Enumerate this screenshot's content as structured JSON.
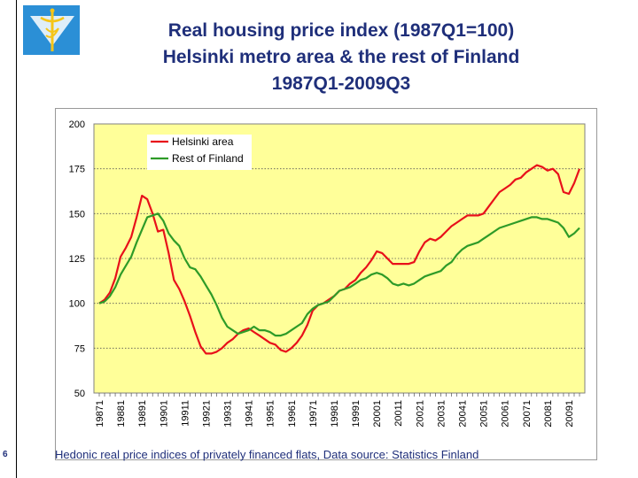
{
  "header": {
    "title_lines": [
      "Real housing price index (1987Q1=100)",
      "Helsinki metro area & the rest of Finland",
      "1987Q1-2009Q3"
    ]
  },
  "footer": {
    "caption": "Hedonic real price indices of privately financed flats, Data source: Statistics Finland",
    "page_number": "6"
  },
  "colors": {
    "title": "#1f2f7a",
    "plot_bg": "#ffff99",
    "helsinki": "#e8101a",
    "rest": "#2e9b28",
    "logo_bg": "#2b8fd6",
    "logo_fg": "#f5c518"
  },
  "chart_data": {
    "type": "line",
    "title": "",
    "xlabel": "",
    "ylabel": "",
    "ylim": [
      50,
      200
    ],
    "yticks": [
      200,
      175,
      150,
      125,
      100,
      75,
      50
    ],
    "grid": true,
    "legend_position": "top-left",
    "x_tick_labels": [
      "19871",
      "19881",
      "19891",
      "19901",
      "19911",
      "19921",
      "19931",
      "19941",
      "19951",
      "19961",
      "19971",
      "19981",
      "19991",
      "20001",
      "20011",
      "20021",
      "20031",
      "20041",
      "20051",
      "20061",
      "20071",
      "20081",
      "20091"
    ],
    "series": [
      {
        "name": "Helsinki area",
        "color": "#e8101a",
        "values": [
          100,
          102,
          106,
          114,
          126,
          131,
          137,
          148,
          160,
          158,
          150,
          140,
          141,
          128,
          113,
          108,
          101,
          93,
          84,
          76,
          72,
          72,
          73,
          75,
          78,
          80,
          83,
          85,
          86,
          84,
          82,
          80,
          78,
          77,
          74,
          73,
          75,
          78,
          82,
          88,
          96,
          99,
          100,
          102,
          104,
          107,
          108,
          111,
          113,
          117,
          120,
          124,
          129,
          128,
          125,
          122,
          122,
          122,
          122,
          123,
          129,
          134,
          136,
          135,
          137,
          140,
          143,
          145,
          147,
          149,
          149,
          149,
          150,
          154,
          158,
          162,
          164,
          166,
          169,
          170,
          173,
          175,
          177,
          176,
          174,
          175,
          172,
          162,
          161,
          167,
          175
        ],
        "x_tick_labels": [],
        "y_values_note": ""
      },
      {
        "name": "Rest of Finland",
        "color": "#2e9b28",
        "values": [
          100,
          101,
          104,
          109,
          116,
          121,
          126,
          134,
          141,
          148,
          149,
          150,
          146,
          139,
          135,
          132,
          125,
          120,
          119,
          115,
          110,
          105,
          99,
          92,
          87,
          85,
          83,
          84,
          85,
          87,
          85,
          85,
          84,
          82,
          82,
          83,
          85,
          87,
          89,
          94,
          97,
          99,
          100,
          101,
          104,
          107,
          108,
          109,
          111,
          113,
          114,
          116,
          117,
          116,
          114,
          111,
          110,
          111,
          110,
          111,
          113,
          115,
          116,
          117,
          118,
          121,
          123,
          127,
          130,
          132,
          133,
          134,
          136,
          138,
          140,
          142,
          143,
          144,
          145,
          146,
          147,
          148,
          148,
          147,
          147,
          146,
          145,
          142,
          137,
          139,
          142
        ]
      }
    ]
  }
}
